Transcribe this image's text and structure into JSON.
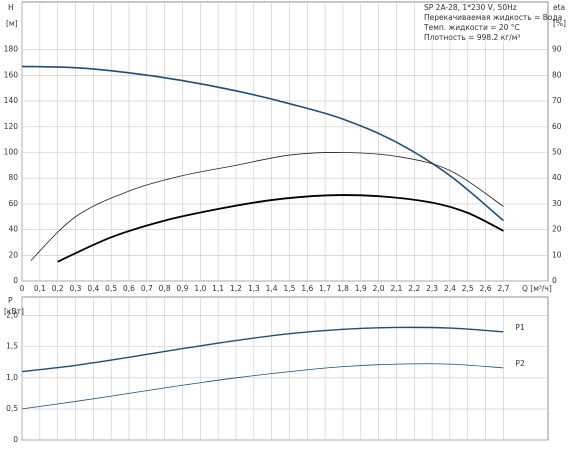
{
  "chart_data": [
    {
      "type": "line",
      "info": [
        "SP 2A-28, 1*230 V, 50Hz",
        "Перекачиваемая жидкость = Вода",
        "Темп. жидкости = 20 °C",
        "Плотность = 998.2 кг/м³"
      ],
      "y_label": "H",
      "y_unit": "[м]",
      "y2_label": "eta",
      "y2_unit": "[%]",
      "x_label": "Q [м³/ч]",
      "xlim": [
        0,
        2.95
      ],
      "xticks": [
        0,
        {
          "value": 0.1,
          "label": "0,1"
        },
        {
          "value": 0.2,
          "label": "0,2"
        },
        {
          "value": 0.3,
          "label": "0,3"
        },
        {
          "value": 0.4,
          "label": "0,4"
        },
        {
          "value": 0.5,
          "label": "0,5"
        },
        {
          "value": 0.6,
          "label": "0,6"
        },
        {
          "value": 0.7,
          "label": "0,7"
        },
        {
          "value": 0.8,
          "label": "0,8"
        },
        {
          "value": 0.9,
          "label": "0,9"
        },
        {
          "value": 1.0,
          "label": "1,0"
        },
        {
          "value": 1.1,
          "label": "1,1"
        },
        {
          "value": 1.2,
          "label": "1,2"
        },
        {
          "value": 1.3,
          "label": "1,3"
        },
        {
          "value": 1.4,
          "label": "1,4"
        },
        {
          "value": 1.5,
          "label": "1,5"
        },
        {
          "value": 1.6,
          "label": "1,6"
        },
        {
          "value": 1.7,
          "label": "1,7"
        },
        {
          "value": 1.8,
          "label": "1,8"
        },
        {
          "value": 1.9,
          "label": "1,9"
        },
        {
          "value": 2.0,
          "label": "2,0"
        },
        {
          "value": 2.1,
          "label": "2,1"
        },
        {
          "value": 2.2,
          "label": "2,2"
        },
        {
          "value": 2.3,
          "label": "2,3"
        },
        {
          "value": 2.4,
          "label": "2,4"
        },
        {
          "value": 2.5,
          "label": "2,5"
        },
        {
          "value": 2.6,
          "label": "2,6"
        },
        {
          "value": 2.7,
          "label": "2,7"
        }
      ],
      "ylim": [
        0,
        200
      ],
      "yticks": [
        0,
        20,
        40,
        60,
        80,
        100,
        120,
        140,
        160,
        180
      ],
      "y2lim": [
        0,
        100
      ],
      "y2ticks": [
        0,
        10,
        20,
        30,
        40,
        50,
        60,
        70,
        80,
        90
      ],
      "grid": true,
      "series": [
        {
          "color": "#1f4e79",
          "line_width": 1.6,
          "x": [
            0,
            0.3,
            0.6,
            0.9,
            1.2,
            1.5,
            1.8,
            2.1,
            2.4,
            2.7
          ],
          "values": [
            167,
            166,
            162,
            156,
            148,
            138,
            126,
            108,
            82,
            47
          ]
        },
        {
          "color": "#222222",
          "line_width": 0.8,
          "axis": "y2",
          "x": [
            0.05,
            0.3,
            0.6,
            0.9,
            1.2,
            1.5,
            1.8,
            2.1,
            2.4,
            2.7
          ],
          "values": [
            8,
            25,
            35,
            41,
            45,
            49,
            50,
            48.5,
            43,
            29
          ]
        },
        {
          "color": "#000000",
          "line_width": 1.8,
          "axis": "y2",
          "x": [
            0.2,
            0.5,
            0.8,
            1.1,
            1.4,
            1.7,
            2.0,
            2.3,
            2.5,
            2.7
          ],
          "values": [
            7.5,
            17,
            23.5,
            28,
            31.5,
            33.3,
            33,
            30.5,
            26.5,
            19.5
          ]
        }
      ]
    },
    {
      "type": "line",
      "y_label": "P",
      "y_unit": "[кВт]",
      "xlim": [
        0,
        2.95
      ],
      "ylim": [
        0,
        2.3
      ],
      "yticks": [
        0,
        {
          "value": 0.5,
          "label": "0,5"
        },
        {
          "value": 1.0,
          "label": "1,0"
        },
        {
          "value": 1.5,
          "label": "1,5"
        },
        {
          "value": 2.0,
          "label": "2,0"
        }
      ],
      "x": [
        0,
        0.3,
        0.6,
        0.9,
        1.2,
        1.5,
        1.8,
        2.1,
        2.4,
        2.7
      ],
      "series": [
        {
          "name": "P1",
          "color": "#1f4e79",
          "line_width": 1.4,
          "values": [
            1.1,
            1.2,
            1.33,
            1.47,
            1.6,
            1.71,
            1.78,
            1.81,
            1.8,
            1.74
          ]
        },
        {
          "name": "P2",
          "color": "#1f4e79",
          "line_width": 0.8,
          "values": [
            0.5,
            0.62,
            0.75,
            0.88,
            1.0,
            1.1,
            1.18,
            1.22,
            1.22,
            1.16
          ]
        }
      ]
    }
  ]
}
